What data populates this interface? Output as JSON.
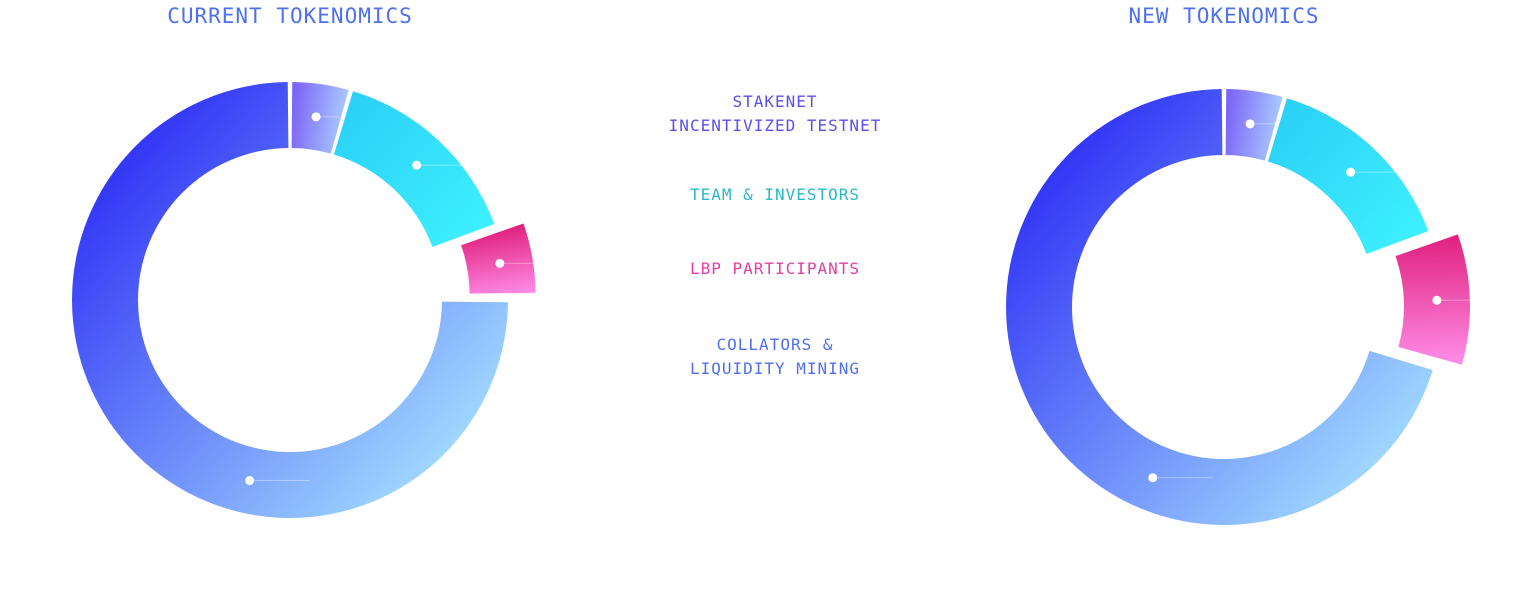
{
  "chart_data": [
    {
      "type": "pie",
      "title": "CURRENT TOKENOMICS",
      "labels": [
        "STAKENET\nINCENTIVIZED TESTNET",
        "TEAM & INVESTORS",
        "LBP PARTICIPANTS",
        "COLLATORS &\nLIQUIDITY MINING"
      ],
      "values": [
        4.5,
        15,
        5.5,
        75
      ],
      "exploded": [
        false,
        false,
        true,
        false
      ]
    },
    {
      "type": "pie",
      "title": "NEW TOKENOMICS",
      "labels": [
        "STAKENET\nINCENTIVIZED TESTNET",
        "TEAM & INVESTORS",
        "LBP PARTICIPANTS",
        "COLLATORS &\nLIQUIDITY MINING"
      ],
      "values": [
        4.5,
        15,
        10,
        70.5
      ],
      "exploded": [
        false,
        false,
        true,
        false
      ]
    }
  ],
  "legend": [
    {
      "label": "STAKENET\nINCENTIVIZED TESTNET",
      "color": "#5a4ef0"
    },
    {
      "label": "TEAM & INVESTORS",
      "color": "#2ab8c8"
    },
    {
      "label": "LBP PARTICIPANTS",
      "color": "#e63ea0"
    },
    {
      "label": "COLLATORS &\nLIQUIDITY MINING",
      "color": "#4f70f0"
    }
  ],
  "colors": {
    "title": "#4f70f0",
    "stakenet": [
      "#7a5ef5",
      "#a8c8ff"
    ],
    "team": [
      "#2ad0f5",
      "#3ef0ff"
    ],
    "lbp": [
      "#e0207e",
      "#ff8ee8"
    ],
    "collators": [
      "#2a2af5",
      "#a8e4ff"
    ]
  }
}
